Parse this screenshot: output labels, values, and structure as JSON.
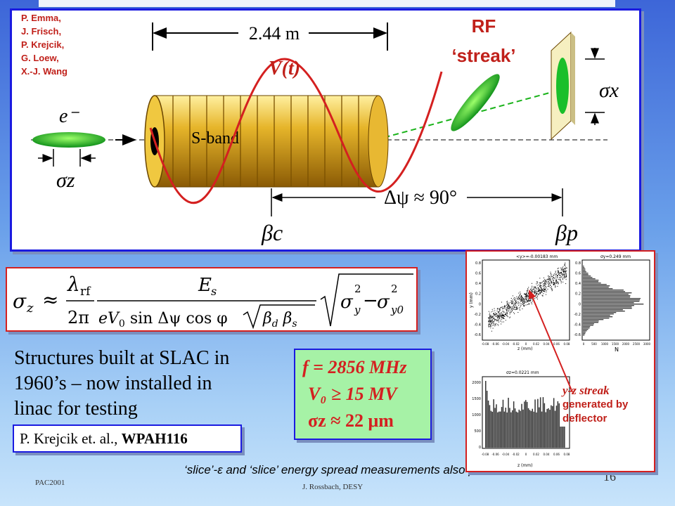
{
  "authors": [
    "P. Emma,",
    "J. Frisch,",
    "P. Krejcik,",
    "G. Loew,",
    "X.-J. Wang"
  ],
  "diagram": {
    "length_label": "2.44 m",
    "rf_label": "RF",
    "streak_label": "‘streak’",
    "voltage_label": "V(t)",
    "electron_label": "e⁻",
    "sband_label": "S-band",
    "sigma_z_label": "σz",
    "sigma_x_label": "σx",
    "phase_label": "Δψ ≈ 90°",
    "beta_c_label": "βc",
    "beta_p_label": "βp"
  },
  "body_text": [
    "Structures built at SLAC in",
    "1960’s – now installed in",
    "linac for testing"
  ],
  "reference": {
    "authors": "P. Krejcik et. al., ",
    "code": "WPAH116"
  },
  "params": {
    "f": "f = 2856 MHz",
    "V0": "V₀ ≥ 15 MV",
    "sigma_z": "σz ≈ 22 μm"
  },
  "footnote": "‘slice’-ε and ‘slice’ energy spread measurements also possible",
  "footer": {
    "left": "PAC2001",
    "center": "J. Rossbach, DESY",
    "page": "16"
  },
  "plots": {
    "top_left_title": "<y>=-0.00183 mm",
    "top_right_title": "σy=0.249 mm",
    "bottom_left_title": "σz=0.0221 mm",
    "x_axis_z": "z (mm)",
    "y_axis_y": "y (mm)",
    "x_axis_n": "N",
    "y_ticks": [
      "0.8",
      "0.6",
      "0.4",
      "0.2",
      "0",
      "-0.2",
      "-0.4",
      "-0.6"
    ],
    "z_ticks": [
      "-0.08",
      "-0.06",
      "-0.04",
      "-0.02",
      "0",
      "0.02",
      "0.04",
      "0.06",
      "0.08"
    ],
    "n_ticks": [
      "0",
      "500",
      "1000",
      "1500",
      "2000",
      "2500",
      "3000"
    ],
    "hist_y_ticks": [
      "2000",
      "1500",
      "1000",
      "500",
      "0"
    ]
  },
  "annotation": {
    "line1": "y-z streak",
    "line2": "generated by",
    "line3": "deflector"
  },
  "colors": {
    "accent_red": "#d42020",
    "frame_blue": "#1a1ae0",
    "param_green": "#a6f2a6",
    "cavity_gold": "#d8a418"
  }
}
